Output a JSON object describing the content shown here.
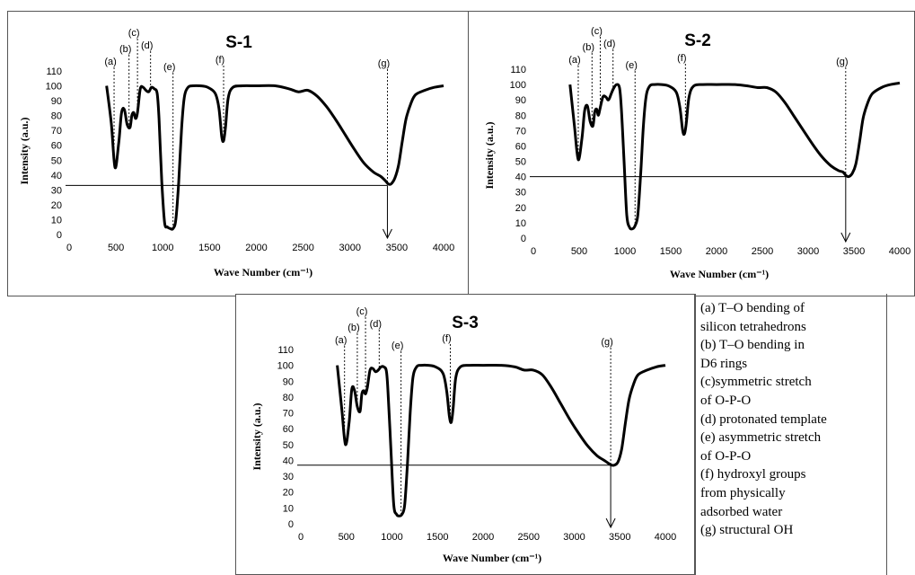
{
  "charts": [
    {
      "title": "S-1",
      "xlabel": "Wave Number (cm⁻¹)",
      "ylabel": "Intensity (a.u.)",
      "x_ticks": [
        "0",
        "500",
        "1000",
        "1500",
        "2000",
        "2500",
        "3000",
        "3500",
        "4000"
      ],
      "y_ticks": [
        "0",
        "10",
        "20",
        "30",
        "40",
        "50",
        "60",
        "70",
        "80",
        "90",
        "100",
        "110"
      ],
      "peak_labels": [
        "(a)",
        "(b)",
        "(c)",
        "(d)",
        "(e)",
        "(f)",
        "(g)"
      ]
    },
    {
      "title": "S-2",
      "xlabel": "Wave Number (cm⁻¹)",
      "ylabel": "Intensity (a.u.)",
      "x_ticks": [
        "0",
        "500",
        "1000",
        "1500",
        "2000",
        "2500",
        "3000",
        "3500",
        "4000"
      ],
      "y_ticks": [
        "0",
        "10",
        "20",
        "30",
        "40",
        "50",
        "60",
        "70",
        "80",
        "90",
        "100",
        "110"
      ],
      "peak_labels": [
        "(a)",
        "(b)",
        "(c)",
        "(d)",
        "(e)",
        "(f)",
        "(g)"
      ]
    },
    {
      "title": "S-3",
      "xlabel": "Wave Number (cm⁻¹)",
      "ylabel": "Intensity (a.u.)",
      "x_ticks": [
        "0",
        "500",
        "1000",
        "1500",
        "2000",
        "2500",
        "3000",
        "3500",
        "4000"
      ],
      "y_ticks": [
        "0",
        "10",
        "20",
        "30",
        "40",
        "50",
        "60",
        "70",
        "80",
        "90",
        "100",
        "110"
      ],
      "peak_labels": [
        "(a)",
        "(b)",
        "(c)",
        "(d)",
        "(e)",
        "(f)",
        "(g)"
      ]
    }
  ],
  "legend": [
    "(a) T–O bending of",
    "silicon  tetrahedrons",
    "(b)  T–O bending in",
    "D6 rings",
    "(c)symmetric stretch",
    "of O-P-O",
    "(d) protonated template",
    "(e)  asymmetric stretch",
    "of O-P-O",
    "(f) hydroxyl  groups",
    "from physically",
    "adsorbed water",
    "(g)  structural OH"
  ],
  "chart_data": [
    {
      "type": "line",
      "title": "S-1",
      "xlabel": "Wave Number (cm⁻¹)",
      "ylabel": "Intensity (a.u.)",
      "xlim": [
        0,
        4000
      ],
      "ylim": [
        0,
        110
      ],
      "grid": false,
      "series": [
        {
          "x": [
            400,
            450,
            490,
            530,
            560,
            590,
            620,
            650,
            670,
            690,
            710,
            730,
            760,
            790,
            820,
            850,
            880,
            910,
            940,
            960,
            990,
            1020,
            1050,
            1080,
            1110,
            1140,
            1170,
            1200,
            1230,
            1270,
            1320,
            1400,
            1480,
            1560,
            1600,
            1630,
            1650,
            1670,
            1700,
            1750,
            1850,
            2000,
            2200,
            2350,
            2450,
            2550,
            2650,
            2750,
            2850,
            2950,
            3050,
            3150,
            3250,
            3330,
            3380,
            3410,
            3440,
            3480,
            3520,
            3560,
            3600,
            3650,
            3700,
            3800,
            3900,
            4000
          ],
          "y": [
            100,
            75,
            45,
            62,
            82,
            84,
            74,
            72,
            80,
            82,
            78,
            82,
            98,
            99,
            97,
            96,
            99,
            98,
            95,
            78,
            35,
            8,
            5,
            4,
            4,
            10,
            35,
            70,
            92,
            99,
            100,
            100,
            99,
            95,
            85,
            66,
            63,
            72,
            92,
            99,
            100,
            100,
            100,
            98,
            96,
            97,
            93,
            86,
            77,
            67,
            57,
            48,
            42,
            39,
            36,
            34,
            34,
            38,
            47,
            63,
            78,
            88,
            94,
            97,
            99,
            100
          ]
        }
      ],
      "annotations": [
        {
          "label": "(a)",
          "x": 480
        },
        {
          "label": "(b)",
          "x": 640
        },
        {
          "label": "(c)",
          "x": 730
        },
        {
          "label": "(d)",
          "x": 870
        },
        {
          "label": "(e)",
          "x": 1110
        },
        {
          "label": "(f)",
          "x": 1650
        },
        {
          "label": "(g)",
          "x": 3400
        }
      ],
      "reference": {
        "y": 33,
        "x": 3400
      }
    },
    {
      "type": "line",
      "title": "S-2",
      "xlabel": "Wave Number (cm⁻¹)",
      "ylabel": "Intensity (a.u.)",
      "xlim": [
        0,
        4000
      ],
      "ylim": [
        0,
        110
      ],
      "grid": false,
      "series": [
        {
          "x": [
            400,
            450,
            490,
            530,
            560,
            590,
            620,
            650,
            670,
            690,
            710,
            730,
            760,
            790,
            820,
            850,
            880,
            910,
            940,
            960,
            990,
            1020,
            1050,
            1080,
            1110,
            1140,
            1170,
            1200,
            1230,
            1270,
            1320,
            1400,
            1480,
            1560,
            1600,
            1630,
            1650,
            1670,
            1700,
            1750,
            1850,
            2000,
            2200,
            2350,
            2450,
            2550,
            2650,
            2750,
            2850,
            2950,
            3050,
            3150,
            3250,
            3330,
            3380,
            3410,
            3440,
            3480,
            3520,
            3560,
            3600,
            3650,
            3700,
            3800,
            3900,
            4000
          ],
          "y": [
            100,
            72,
            51,
            65,
            83,
            86,
            76,
            73,
            82,
            84,
            80,
            85,
            92,
            92,
            90,
            94,
            98,
            100,
            98,
            85,
            50,
            15,
            7,
            6,
            8,
            15,
            40,
            72,
            92,
            99,
            100,
            100,
            99,
            95,
            85,
            70,
            68,
            75,
            92,
            99,
            100,
            100,
            100,
            99,
            98,
            98,
            95,
            88,
            79,
            70,
            61,
            53,
            47,
            44,
            43,
            41,
            40,
            42,
            48,
            62,
            78,
            88,
            94,
            98,
            100,
            101
          ]
        }
      ],
      "annotations": [
        {
          "label": "(a)",
          "x": 490
        },
        {
          "label": "(b)",
          "x": 640
        },
        {
          "label": "(c)",
          "x": 730
        },
        {
          "label": "(d)",
          "x": 870
        },
        {
          "label": "(e)",
          "x": 1110
        },
        {
          "label": "(f)",
          "x": 1660
        },
        {
          "label": "(g)",
          "x": 3410
        }
      ],
      "reference": {
        "y": 40,
        "x": 3410
      }
    },
    {
      "type": "line",
      "title": "S-3",
      "xlabel": "Wave Number (cm⁻¹)",
      "ylabel": "Intensity (a.u.)",
      "xlim": [
        0,
        4000
      ],
      "ylim": [
        0,
        110
      ],
      "grid": false,
      "series": [
        {
          "x": [
            400,
            450,
            490,
            530,
            560,
            590,
            620,
            650,
            670,
            690,
            710,
            730,
            760,
            790,
            820,
            850,
            880,
            910,
            940,
            960,
            990,
            1020,
            1050,
            1080,
            1110,
            1140,
            1170,
            1200,
            1230,
            1270,
            1320,
            1400,
            1480,
            1560,
            1600,
            1630,
            1650,
            1670,
            1700,
            1750,
            1850,
            2000,
            2200,
            2350,
            2450,
            2550,
            2650,
            2750,
            2850,
            2950,
            3050,
            3150,
            3250,
            3330,
            3380,
            3410,
            3440,
            3480,
            3520,
            3560,
            3600,
            3650,
            3700,
            3800,
            3900,
            4000
          ],
          "y": [
            100,
            72,
            50,
            64,
            85,
            84,
            74,
            71,
            82,
            84,
            82,
            86,
            97,
            98,
            96,
            97,
            99,
            99,
            96,
            80,
            45,
            12,
            6,
            5,
            6,
            12,
            38,
            70,
            92,
            99,
            100,
            100,
            99,
            95,
            84,
            68,
            64,
            72,
            92,
            99,
            100,
            100,
            100,
            99,
            97,
            97,
            94,
            86,
            76,
            66,
            57,
            49,
            43,
            40,
            38,
            37,
            37,
            39,
            47,
            63,
            78,
            88,
            94,
            97,
            99,
            100
          ]
        }
      ],
      "annotations": [
        {
          "label": "(a)",
          "x": 480
        },
        {
          "label": "(b)",
          "x": 620
        },
        {
          "label": "(c)",
          "x": 710
        },
        {
          "label": "(d)",
          "x": 860
        },
        {
          "label": "(e)",
          "x": 1100
        },
        {
          "label": "(f)",
          "x": 1640
        },
        {
          "label": "(g)",
          "x": 3400
        }
      ],
      "reference": {
        "y": 37,
        "x": 3400
      }
    }
  ]
}
